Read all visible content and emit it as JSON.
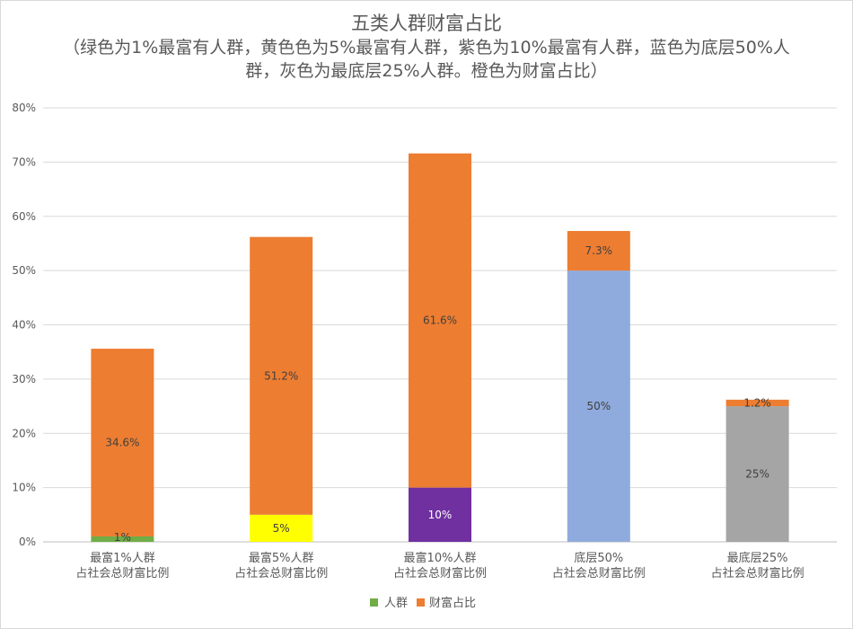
{
  "chart_data": {
    "type": "bar",
    "stacked": true,
    "title": "五类人群财富占比",
    "subtitle": "（绿色为1%最富有人群，黄色色为5%最富有人群，紫色为10%最富有人群，蓝色为底层50%人群，灰色为最底层25%人群。橙色为财富占比）",
    "categories": [
      [
        "最富1%人群",
        "占社会总财富比例"
      ],
      [
        "最富5%人群",
        "占社会总财富比例"
      ],
      [
        "最富10%人群",
        "占社会总财富比例"
      ],
      [
        "底层50%",
        "占社会总财富比例"
      ],
      [
        "最底层25%",
        "占社会总财富比例"
      ]
    ],
    "series": [
      {
        "name": "人群",
        "values": [
          1,
          5,
          10,
          50,
          25
        ],
        "labels": [
          "1%",
          "5%",
          "10%",
          "50%",
          "25%"
        ],
        "colors": [
          "#70ad47",
          "#ffff00",
          "#7030a0",
          "#8faadc",
          "#a5a5a5"
        ]
      },
      {
        "name": "财富占比",
        "values": [
          34.6,
          51.2,
          61.6,
          7.3,
          1.2
        ],
        "labels": [
          "34.6%",
          "51.2%",
          "61.6%",
          "7.3%",
          "1.2%"
        ],
        "color": "#ed7d31"
      }
    ],
    "ylim": [
      0,
      80
    ],
    "yticks": [
      "0%",
      "10%",
      "20%",
      "30%",
      "40%",
      "50%",
      "60%",
      "70%",
      "80%"
    ],
    "grid": true,
    "legend_position": "bottom"
  }
}
